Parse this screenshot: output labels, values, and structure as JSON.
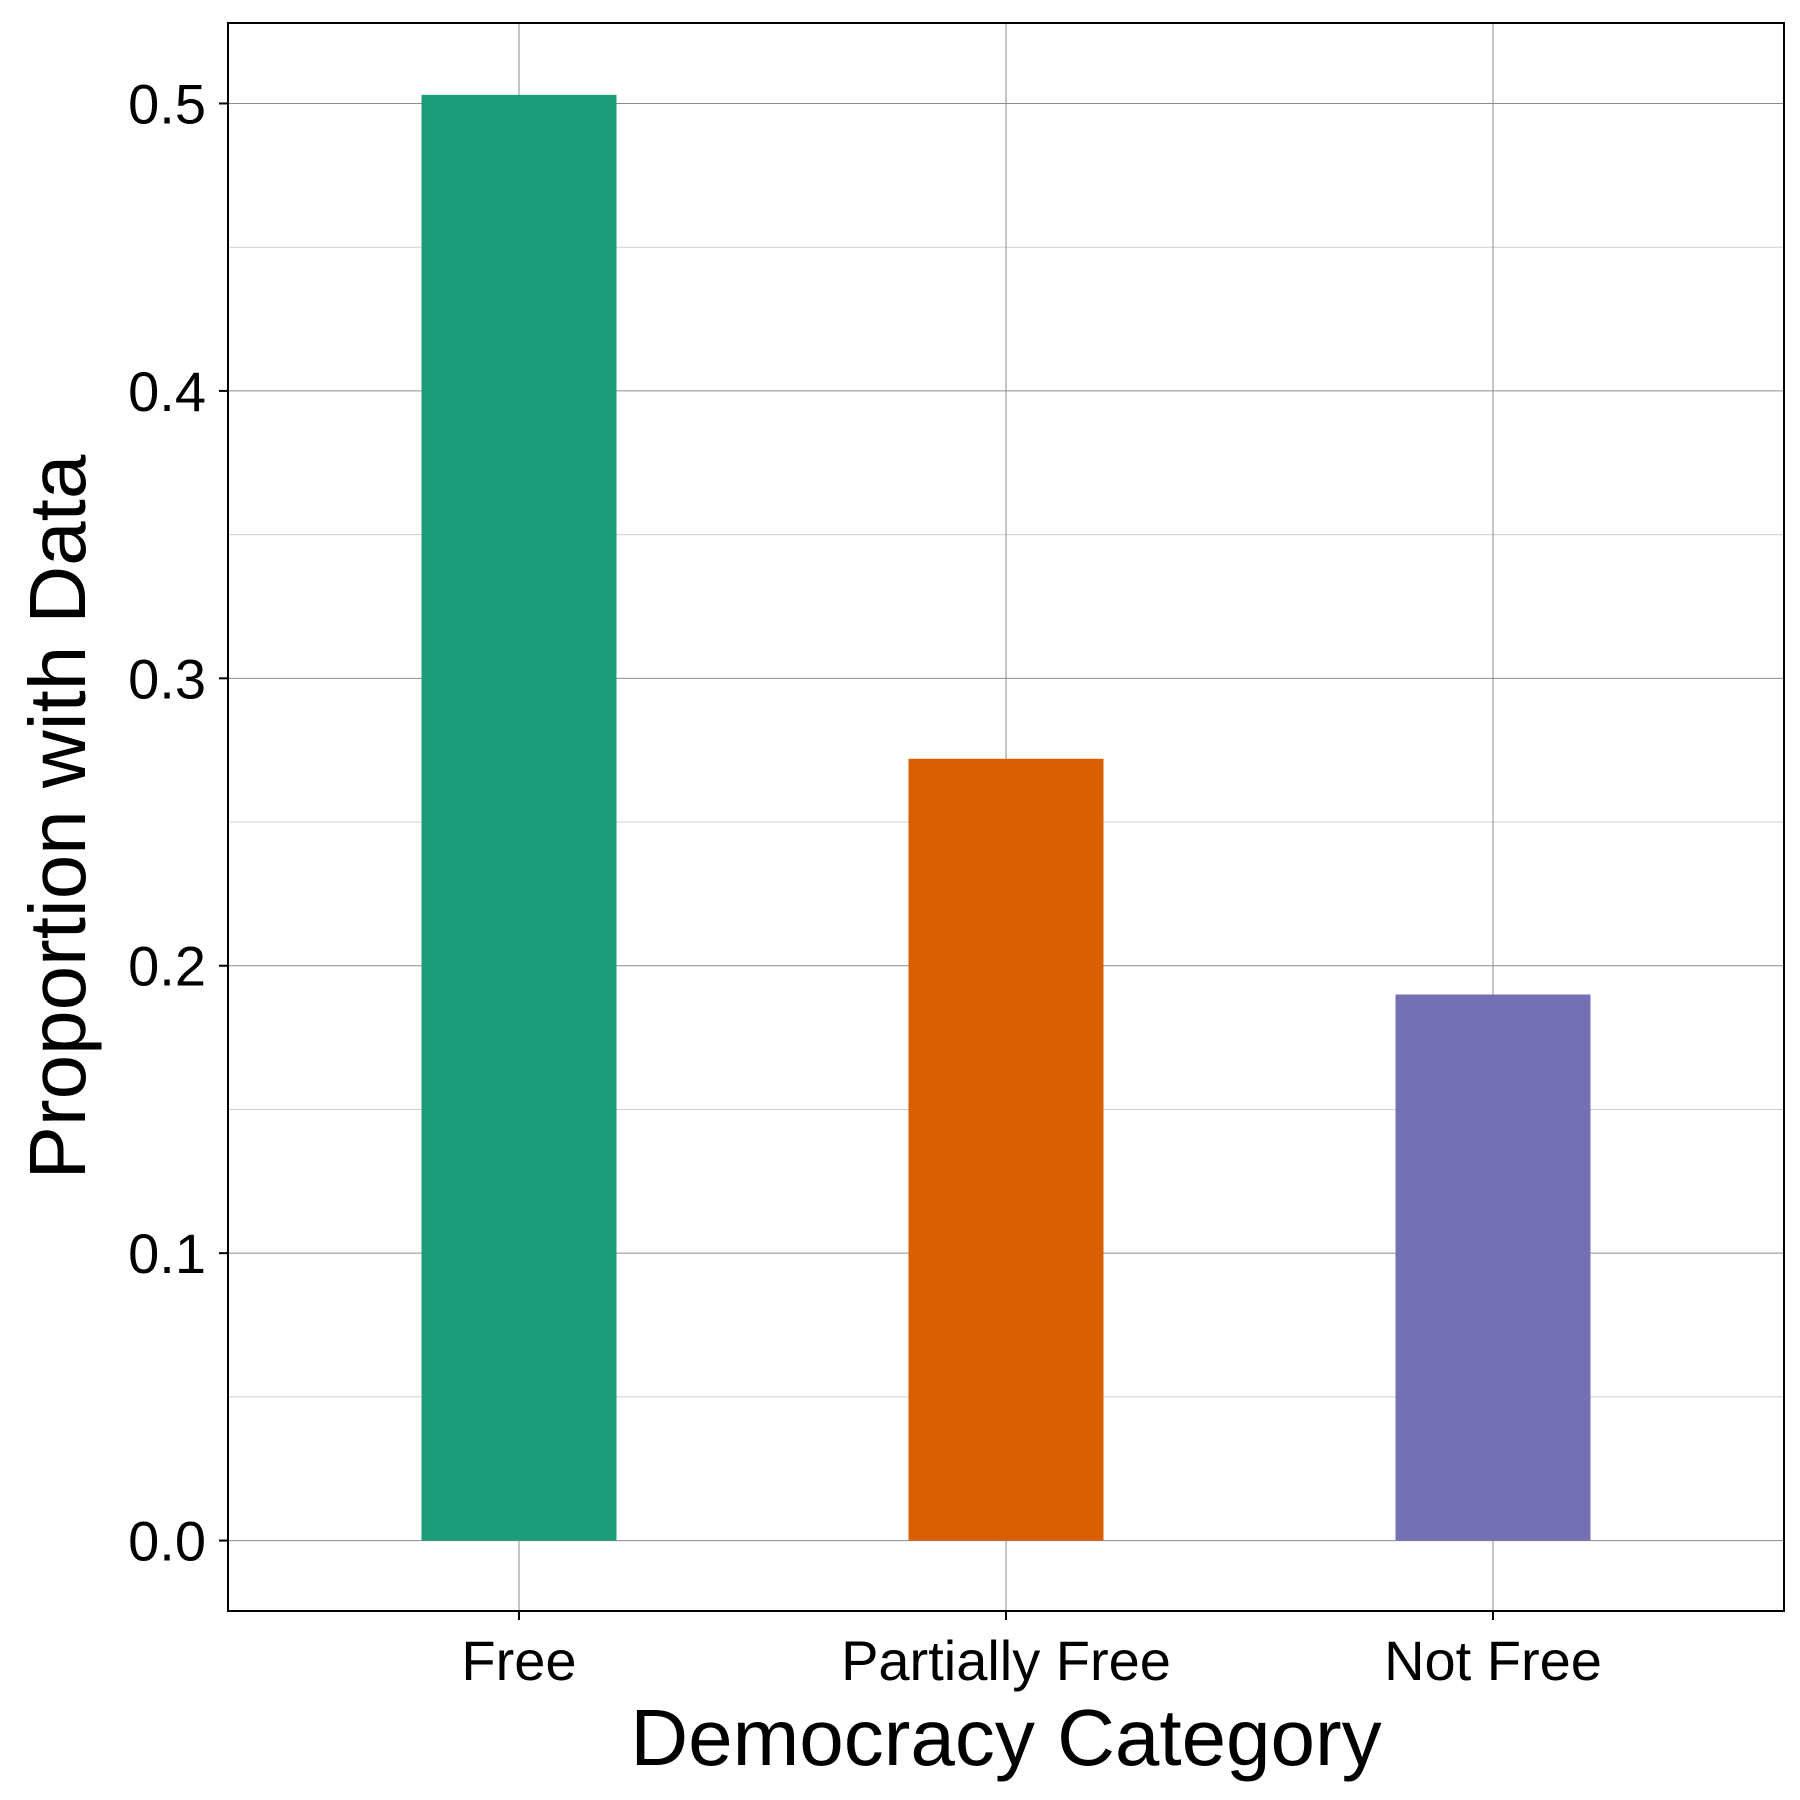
{
  "chart_data": {
    "type": "bar",
    "title": "",
    "xlabel": "Democracy Category",
    "ylabel": "Proportion with Data",
    "categories": [
      "Free",
      "Partially Free",
      "Not Free"
    ],
    "values": [
      0.503,
      0.272,
      0.19
    ],
    "colors": [
      "#1b9e77",
      "#d95f02",
      "#7570b3"
    ],
    "ylim": [
      -0.0245,
      0.528
    ],
    "yticks": [
      0.0,
      0.1,
      0.2,
      0.3,
      0.4,
      0.5
    ],
    "ytick_labels": [
      "0.0",
      "0.1",
      "0.2",
      "0.3",
      "0.4",
      "0.5"
    ],
    "grid": true,
    "legend": "none"
  }
}
